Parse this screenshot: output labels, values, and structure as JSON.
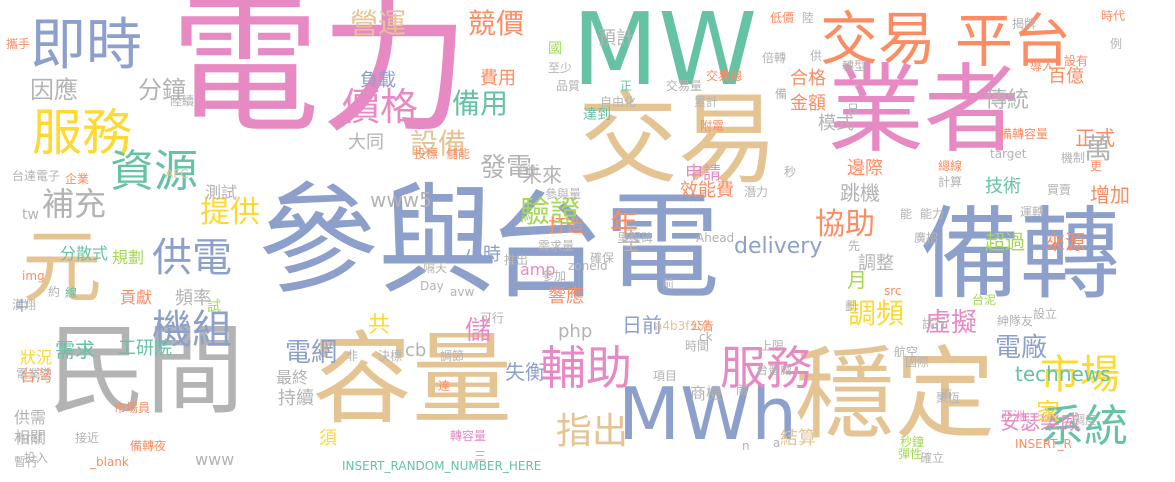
{
  "palette": {
    "pink": "#e78ac3",
    "tan": "#e5c494",
    "blue": "#8da0cb",
    "teal": "#66c2a5",
    "orange": "#fc8d62",
    "green": "#a6d854",
    "yellow": "#ffd92f",
    "gray": "#b3b3b3"
  },
  "words": [
    {
      "text": "電力"
    },
    {
      "text": "MW"
    },
    {
      "text": "參與"
    },
    {
      "text": "台電"
    },
    {
      "text": "業者"
    },
    {
      "text": "交易"
    },
    {
      "text": "備轉"
    },
    {
      "text": "容量"
    },
    {
      "text": "穩定"
    },
    {
      "text": "民間"
    },
    {
      "text": "元"
    },
    {
      "text": "MWh"
    },
    {
      "text": "交易"
    },
    {
      "text": "平台"
    },
    {
      "text": "即時"
    },
    {
      "text": "服務"
    },
    {
      "text": "資源"
    },
    {
      "text": "補充"
    },
    {
      "text": "因應"
    },
    {
      "text": "分鐘"
    },
    {
      "text": "供電"
    },
    {
      "text": "機組"
    },
    {
      "text": "輔助"
    },
    {
      "text": "服務"
    },
    {
      "text": "價格"
    },
    {
      "text": "提供"
    },
    {
      "text": "驗證"
    },
    {
      "text": "協助"
    },
    {
      "text": "系統"
    },
    {
      "text": "市場"
    },
    {
      "text": "指出"
    },
    {
      "text": "調頻"
    },
    {
      "text": "營運"
    },
    {
      "text": "競價"
    },
    {
      "text": "備用"
    },
    {
      "text": "設備"
    },
    {
      "text": "發電"
    },
    {
      "text": "www5"
    },
    {
      "text": "小時"
    },
    {
      "text": "效能費"
    },
    {
      "text": "費用"
    },
    {
      "text": "負載"
    },
    {
      "text": "大同"
    },
    {
      "text": "delivery"
    },
    {
      "text": "虛擬"
    },
    {
      "text": "電廠"
    },
    {
      "text": "technews"
    },
    {
      "text": "安瑟樂威"
    },
    {
      "text": "家"
    },
    {
      "text": "電網"
    },
    {
      "text": "工研院"
    },
    {
      "text": "需求"
    },
    {
      "text": "台灣"
    },
    {
      "text": "分散式"
    },
    {
      "text": "規劃"
    },
    {
      "text": "頻率"
    },
    {
      "text": "貢獻"
    },
    {
      "text": "失衡"
    },
    {
      "text": "日前"
    },
    {
      "text": "php"
    },
    {
      "text": "儲"
    },
    {
      "text": "共"
    },
    {
      "text": "cb"
    },
    {
      "text": "響應"
    },
    {
      "text": "amp"
    },
    {
      "text": "打造"
    },
    {
      "text": "年"
    },
    {
      "text": "全"
    },
    {
      "text": "金額"
    },
    {
      "text": "合格"
    },
    {
      "text": "傳統"
    },
    {
      "text": "正式"
    },
    {
      "text": "百億"
    },
    {
      "text": "萬"
    },
    {
      "text": "增加"
    },
    {
      "text": "來源"
    },
    {
      "text": "超過"
    },
    {
      "text": "技術"
    },
    {
      "text": "跳機"
    },
    {
      "text": "邊際"
    },
    {
      "text": "模式"
    },
    {
      "text": "申請"
    },
    {
      "text": "預計"
    },
    {
      "text": "未來"
    },
    {
      "text": "月"
    },
    {
      "text": "調整"
    },
    {
      "text": "結算"
    },
    {
      "text": "須"
    },
    {
      "text": "持續"
    },
    {
      "text": "最終"
    },
    {
      "text": "www"
    },
    {
      "text": "商機"
    },
    {
      "text": "zoneid"
    },
    {
      "text": "a4b3f35b"
    },
    {
      "text": "INSERT_RANDOM_NUMBER_HERE"
    },
    {
      "text": "轉容量"
    },
    {
      "text": "亞洲"
    },
    {
      "text": "秒鐘"
    },
    {
      "text": "彈性"
    },
    {
      "text": "測試"
    },
    {
      "text": "狀況"
    },
    {
      "text": "供需"
    },
    {
      "text": "相關"
    },
    {
      "text": "暫行"
    },
    {
      "text": "_blank"
    },
    {
      "text": "接近"
    },
    {
      "text": "href"
    },
    {
      "text": "台達電子"
    },
    {
      "text": "企業"
    },
    {
      "text": "AFC"
    },
    {
      "text": "tw"
    },
    {
      "text": "中"
    },
    {
      "text": "試"
    },
    {
      "text": "揭牌"
    },
    {
      "text": "導入"
    },
    {
      "text": "設有"
    },
    {
      "text": "時代"
    },
    {
      "text": "例"
    },
    {
      "text": "低價"
    },
    {
      "text": "陸"
    },
    {
      "text": "轉型"
    },
    {
      "text": "國"
    },
    {
      "text": "至少"
    },
    {
      "text": "品質"
    },
    {
      "text": "自由化"
    },
    {
      "text": "累計"
    },
    {
      "text": "備轉容量"
    },
    {
      "text": "機制"
    },
    {
      "text": "買賣"
    },
    {
      "text": "target"
    },
    {
      "text": "里程碑"
    },
    {
      "text": "Ahead"
    },
    {
      "text": "確保"
    },
    {
      "text": "推出"
    },
    {
      "text": "參加"
    },
    {
      "text": "電業法"
    },
    {
      "text": "市場員"
    },
    {
      "text": "INSERT_R"
    },
    {
      "text": "能力"
    },
    {
      "text": "廣招"
    },
    {
      "text": "設立"
    },
    {
      "text": "紳隊友"
    },
    {
      "text": "台泥"
    },
    {
      "text": "試行"
    },
    {
      "text": "公告"
    },
    {
      "text": "時間"
    },
    {
      "text": "航空"
    },
    {
      "text": "上限"
    },
    {
      "text": "項目"
    },
    {
      "text": "台普威"
    },
    {
      "text": "可行"
    },
    {
      "text": "調節"
    },
    {
      "text": "src"
    },
    {
      "text": "img"
    },
    {
      "text": "漢翔"
    },
    {
      "text": "約"
    },
    {
      "text": "隔天"
    },
    {
      "text": "Day"
    },
    {
      "text": "avw"
    },
    {
      "text": "決標"
    },
    {
      "text": "備轉夜"
    },
    {
      "text": "投入"
    },
    {
      "text": "總線"
    },
    {
      "text": "計算"
    },
    {
      "text": "投標"
    },
    {
      "text": "儲能"
    },
    {
      "text": "平衡"
    },
    {
      "text": "參與量"
    },
    {
      "text": "需求量"
    },
    {
      "text": "附電"
    },
    {
      "text": "運轉"
    },
    {
      "text": "潛力"
    },
    {
      "text": "聚恆"
    },
    {
      "text": "國際"
    },
    {
      "text": "調度"
    },
    {
      "text": "確立"
    },
    {
      "text": "攜手"
    },
    {
      "text": "陸續"
    },
    {
      "text": "達到"
    },
    {
      "text": "交易量"
    },
    {
      "text": "交易總"
    },
    {
      "text": "倍轉"
    },
    {
      "text": "秒"
    },
    {
      "text": "先"
    },
    {
      "text": "劃"
    },
    {
      "text": "更"
    },
    {
      "text": "首"
    },
    {
      "text": "非"
    },
    {
      "text": "達"
    },
    {
      "text": "線"
    },
    {
      "text": "三"
    },
    {
      "text": "能"
    },
    {
      "text": "n"
    },
    {
      "text": "正"
    },
    {
      "text": "備"
    },
    {
      "text": "天"
    },
    {
      "text": "前"
    },
    {
      "text": "ck"
    },
    {
      "text": "雨"
    },
    {
      "text": "a"
    },
    {
      "text": "供"
    },
    {
      "text": "日"
    }
  ]
}
